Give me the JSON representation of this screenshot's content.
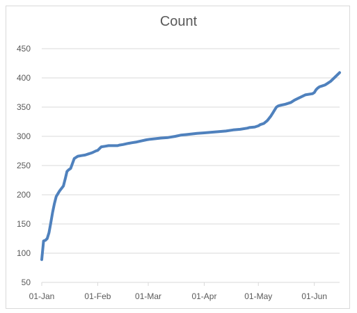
{
  "chart_data": {
    "type": "line",
    "title": "Count",
    "xlabel": "",
    "ylabel": "",
    "ylim": [
      50,
      450
    ],
    "y_ticks": [
      50,
      100,
      150,
      200,
      250,
      300,
      350,
      400,
      450
    ],
    "x_tick_labels": [
      "01-Jan",
      "01-Feb",
      "01-Mar",
      "01-Apr",
      "01-May",
      "01-Jun"
    ],
    "x_tick_days": [
      0,
      31,
      59,
      90,
      120,
      151
    ],
    "x_range_days": [
      0,
      165
    ],
    "grid": "horizontal",
    "legend": "none",
    "colors": {
      "line": "#4f81bd",
      "grid": "#d9d9d9",
      "text": "#595959"
    },
    "series": [
      {
        "x": [
          0,
          1,
          2,
          3,
          4,
          5,
          6,
          7,
          8,
          9,
          10,
          11,
          12,
          13,
          14,
          15,
          16,
          18,
          20,
          22,
          24,
          26,
          28,
          30,
          31,
          33,
          35,
          37,
          38,
          39,
          40,
          41,
          42,
          43,
          45,
          48,
          50,
          52,
          55,
          58,
          60,
          63,
          66,
          70,
          74,
          77,
          80,
          83,
          86,
          90,
          94,
          98,
          102,
          106,
          110,
          114,
          115,
          118,
          120,
          121,
          123,
          125,
          126,
          127,
          128,
          129,
          130,
          131,
          132,
          135,
          138,
          140,
          142,
          144,
          146,
          150,
          151,
          152,
          153,
          154,
          155,
          157,
          158,
          159,
          160,
          161,
          163,
          165
        ],
        "y": [
          89,
          121,
          122,
          125,
          135,
          152,
          170,
          185,
          197,
          202,
          207,
          211,
          215,
          227,
          240,
          243,
          245,
          262,
          266,
          267,
          268,
          270,
          272,
          275,
          276,
          282,
          283,
          284,
          284,
          284,
          284,
          284,
          284,
          285,
          286,
          288,
          289,
          290,
          292,
          294,
          295,
          296,
          297,
          298,
          300,
          302,
          303,
          304,
          305,
          306,
          307,
          308,
          309,
          311,
          312,
          314,
          315,
          316,
          318,
          320,
          322,
          327,
          331,
          335,
          340,
          345,
          350,
          352,
          353,
          355,
          358,
          362,
          365,
          368,
          371,
          373,
          375,
          380,
          383,
          385,
          386,
          388,
          390,
          392,
          394,
          397,
          403,
          409
        ]
      }
    ]
  }
}
